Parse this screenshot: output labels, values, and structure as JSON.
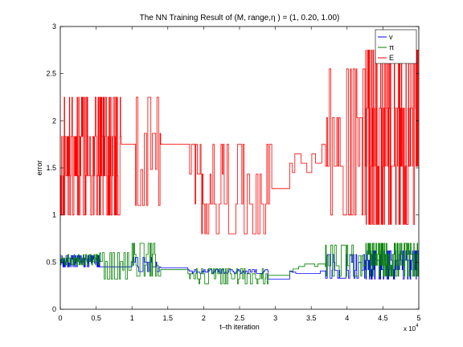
{
  "chart_data": {
    "type": "line",
    "title": "The NN Training Result of (M, range,η ) = (1, 0.20, 1.00)",
    "xlabel": "t–th iteration",
    "ylabel": "error",
    "x_exponent_label": "x 10",
    "x_exponent_power": "4",
    "xlim": [
      0,
      5
    ],
    "ylim": [
      0,
      3
    ],
    "x_ticks": [
      0,
      0.5,
      1,
      1.5,
      2,
      2.5,
      3,
      3.5,
      4,
      4.5,
      5
    ],
    "x_tick_labels": [
      "0",
      "0.5",
      "1",
      "1.5",
      "2",
      "2.5",
      "3",
      "3.5",
      "4",
      "4.5",
      "5"
    ],
    "y_ticks": [
      0,
      0.5,
      1,
      1.5,
      2,
      2.5,
      3
    ],
    "y_tick_labels": [
      "0",
      "0.5",
      "1",
      "1.5",
      "2",
      "2.5",
      "3"
    ],
    "grid": false,
    "legend_position": "top-right",
    "series": [
      {
        "name": "v",
        "color": "#0000ff",
        "segments": [
          {
            "x0": 0.0,
            "x1": 0.55,
            "lo": 0.45,
            "hi": 0.57,
            "freq": "dense"
          },
          {
            "x0": 0.55,
            "x1": 1.0,
            "lo": 0.45,
            "hi": 0.45,
            "freq": "flat"
          },
          {
            "x0": 1.0,
            "x1": 1.4,
            "lo": 0.4,
            "hi": 0.55,
            "freq": "medium"
          },
          {
            "x0": 1.4,
            "x1": 1.78,
            "lo": 0.44,
            "hi": 0.44,
            "freq": "flat"
          },
          {
            "x0": 1.78,
            "x1": 2.9,
            "lo": 0.38,
            "hi": 0.42,
            "freq": "medium"
          },
          {
            "x0": 2.9,
            "x1": 3.2,
            "lo": 0.32,
            "hi": 0.32,
            "freq": "flat"
          },
          {
            "x0": 3.2,
            "x1": 3.7,
            "lo": 0.38,
            "hi": 0.42,
            "freq": "sparse"
          },
          {
            "x0": 3.7,
            "x1": 4.25,
            "lo": 0.33,
            "hi": 0.58,
            "freq": "medium"
          },
          {
            "x0": 4.25,
            "x1": 5.0,
            "lo": 0.32,
            "hi": 0.62,
            "freq": "dense"
          }
        ]
      },
      {
        "name": "π",
        "color": "#008000",
        "segments": [
          {
            "x0": 0.0,
            "x1": 0.55,
            "lo": 0.47,
            "hi": 0.58,
            "freq": "dense"
          },
          {
            "x0": 0.55,
            "x1": 1.0,
            "lo": 0.32,
            "hi": 0.6,
            "freq": "medium"
          },
          {
            "x0": 1.0,
            "x1": 1.4,
            "lo": 0.35,
            "hi": 0.7,
            "freq": "medium"
          },
          {
            "x0": 1.4,
            "x1": 1.78,
            "lo": 0.42,
            "hi": 0.42,
            "freq": "flat"
          },
          {
            "x0": 1.78,
            "x1": 2.9,
            "lo": 0.27,
            "hi": 0.43,
            "freq": "medium"
          },
          {
            "x0": 2.9,
            "x1": 3.2,
            "lo": 0.36,
            "hi": 0.36,
            "freq": "flat"
          },
          {
            "x0": 3.2,
            "x1": 3.7,
            "lo": 0.4,
            "hi": 0.48,
            "freq": "sparse"
          },
          {
            "x0": 3.7,
            "x1": 4.25,
            "lo": 0.35,
            "hi": 0.68,
            "freq": "medium"
          },
          {
            "x0": 4.25,
            "x1": 5.0,
            "lo": 0.35,
            "hi": 0.7,
            "freq": "dense"
          }
        ]
      },
      {
        "name": "E",
        "color": "#ff0000",
        "segments": [
          {
            "x0": 0.0,
            "x1": 0.85,
            "lo": 1.0,
            "hi": 2.25,
            "freq": "dense"
          },
          {
            "x0": 0.85,
            "x1": 1.05,
            "lo": 1.75,
            "hi": 1.75,
            "freq": "flat"
          },
          {
            "x0": 1.05,
            "x1": 1.4,
            "lo": 1.1,
            "hi": 2.25,
            "freq": "medium"
          },
          {
            "x0": 1.4,
            "x1": 1.78,
            "lo": 1.75,
            "hi": 1.75,
            "freq": "flat"
          },
          {
            "x0": 1.78,
            "x1": 2.95,
            "lo": 0.8,
            "hi": 1.75,
            "freq": "medium"
          },
          {
            "x0": 2.95,
            "x1": 3.2,
            "lo": 1.28,
            "hi": 1.28,
            "freq": "flat"
          },
          {
            "x0": 3.2,
            "x1": 3.7,
            "lo": 1.45,
            "hi": 1.75,
            "freq": "sparse"
          },
          {
            "x0": 3.7,
            "x1": 4.25,
            "lo": 1.0,
            "hi": 2.55,
            "freq": "medium"
          },
          {
            "x0": 4.25,
            "x1": 5.0,
            "lo": 0.9,
            "hi": 2.75,
            "freq": "dense"
          }
        ]
      }
    ]
  }
}
